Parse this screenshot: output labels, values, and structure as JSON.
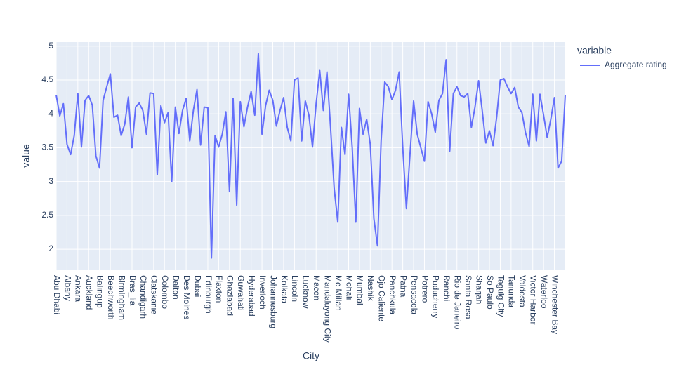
{
  "chart_data": {
    "type": "line",
    "x_label": "City",
    "y_label": "value",
    "legend_title": "variable",
    "categories": [
      "Abu Dhabi",
      null,
      null,
      "Albany",
      null,
      null,
      "Ankara",
      null,
      null,
      "Auckland",
      null,
      null,
      "Balingup",
      null,
      null,
      "Beechworth",
      null,
      null,
      "Birmingham",
      null,
      null,
      "Bras_lia",
      null,
      null,
      "Chandigarh",
      null,
      null,
      "Clatskanie",
      null,
      null,
      "Colombo",
      null,
      null,
      "Dalton",
      null,
      null,
      "Des Moines",
      null,
      null,
      "Dubai",
      null,
      null,
      "Edinburgh",
      null,
      null,
      "Flaxton",
      null,
      null,
      "Ghaziabad",
      null,
      null,
      "Guwahati",
      null,
      null,
      "Hyderabad",
      null,
      null,
      "Inverloch",
      null,
      null,
      "Johannesburg",
      null,
      null,
      "Kolkata",
      null,
      null,
      "Lincoln",
      null,
      null,
      "Lucknow",
      null,
      null,
      "Macon",
      null,
      null,
      "Mandaluyong City",
      null,
      null,
      "Mc Millan",
      null,
      null,
      "Mohali",
      null,
      null,
      "Mumbai",
      null,
      null,
      "Nashik",
      null,
      null,
      "Ojo Caliente",
      null,
      null,
      "Panchkula",
      null,
      null,
      "Patna",
      null,
      null,
      "Pensacola",
      null,
      null,
      "Potrero",
      null,
      null,
      "Puducherry",
      null,
      null,
      "Ranchi",
      null,
      null,
      "Rio de Janeiro",
      null,
      null,
      "Santa Rosa",
      null,
      null,
      "Sharjah",
      null,
      null,
      "So Paulo",
      null,
      null,
      "Taguig City",
      null,
      null,
      "Tanunda",
      null,
      null,
      "Valdosta",
      null,
      null,
      "Victor Harbor",
      null,
      null,
      "Waterloo",
      null,
      null,
      "Winchester Bay",
      null,
      null,
      null
    ],
    "series": [
      {
        "name": "Aggregate rating",
        "color": "#636efa",
        "values": [
          4.28,
          3.97,
          4.15,
          3.55,
          3.4,
          3.68,
          4.3,
          3.51,
          4.2,
          4.27,
          4.13,
          3.38,
          3.2,
          4.2,
          4.4,
          4.59,
          3.95,
          3.98,
          3.68,
          3.85,
          4.25,
          3.5,
          4.1,
          4.16,
          4.05,
          3.7,
          4.31,
          4.3,
          3.1,
          4.12,
          3.87,
          4.02,
          3.0,
          4.1,
          3.71,
          4.05,
          4.23,
          3.6,
          4.05,
          4.36,
          3.54,
          4.1,
          4.09,
          1.87,
          3.68,
          3.51,
          3.7,
          4.03,
          2.85,
          4.23,
          2.65,
          4.18,
          3.81,
          4.1,
          4.33,
          3.98,
          4.89,
          3.7,
          4.12,
          4.35,
          4.2,
          3.82,
          4.05,
          4.24,
          3.8,
          3.6,
          4.5,
          4.53,
          3.6,
          4.19,
          3.98,
          3.51,
          4.15,
          4.64,
          4.05,
          4.62,
          3.8,
          2.9,
          2.4,
          3.8,
          3.4,
          4.29,
          3.5,
          2.4,
          4.08,
          3.7,
          3.92,
          3.55,
          2.45,
          2.05,
          3.6,
          4.47,
          4.4,
          4.21,
          4.35,
          4.62,
          3.5,
          2.6,
          3.4,
          4.19,
          3.7,
          3.5,
          3.3,
          4.18,
          4.0,
          3.73,
          4.2,
          4.3,
          4.8,
          3.45,
          4.3,
          4.4,
          4.27,
          4.25,
          4.3,
          3.8,
          4.1,
          4.49,
          4.05,
          3.57,
          3.75,
          3.53,
          3.95,
          4.5,
          4.52,
          4.4,
          4.3,
          4.39,
          4.1,
          4.02,
          3.72,
          3.52,
          4.29,
          3.6,
          4.29,
          3.98,
          3.65,
          3.92,
          4.24,
          3.2,
          3.3,
          4.28
        ]
      }
    ],
    "ylim": [
      1.7,
      5.06
    ],
    "yticks": [
      2,
      2.5,
      3,
      3.5,
      4,
      4.5,
      5
    ],
    "grid": true
  }
}
